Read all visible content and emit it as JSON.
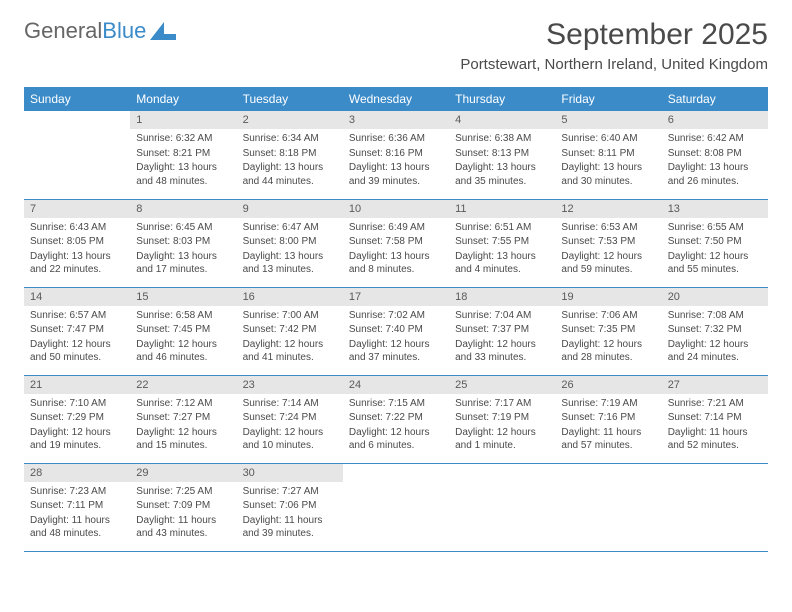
{
  "brand": {
    "name1": "General",
    "name2": "Blue"
  },
  "title": "September 2025",
  "location": "Portstewart, Northern Ireland, United Kingdom",
  "colors": {
    "header_bg": "#3b8bc9",
    "header_text": "#ffffff",
    "daynum_bg": "#e6e6e6",
    "text": "#4a4a4a",
    "border": "#3b8bc9",
    "page_bg": "#ffffff"
  },
  "fonts": {
    "title_size": 30,
    "location_size": 15,
    "weekday_size": 12,
    "body_size": 10
  },
  "weekdays": [
    "Sunday",
    "Monday",
    "Tuesday",
    "Wednesday",
    "Thursday",
    "Friday",
    "Saturday"
  ],
  "first_weekday_index": 1,
  "days": [
    {
      "n": "1",
      "sunrise": "Sunrise: 6:32 AM",
      "sunset": "Sunset: 8:21 PM",
      "daylight": "Daylight: 13 hours and 48 minutes."
    },
    {
      "n": "2",
      "sunrise": "Sunrise: 6:34 AM",
      "sunset": "Sunset: 8:18 PM",
      "daylight": "Daylight: 13 hours and 44 minutes."
    },
    {
      "n": "3",
      "sunrise": "Sunrise: 6:36 AM",
      "sunset": "Sunset: 8:16 PM",
      "daylight": "Daylight: 13 hours and 39 minutes."
    },
    {
      "n": "4",
      "sunrise": "Sunrise: 6:38 AM",
      "sunset": "Sunset: 8:13 PM",
      "daylight": "Daylight: 13 hours and 35 minutes."
    },
    {
      "n": "5",
      "sunrise": "Sunrise: 6:40 AM",
      "sunset": "Sunset: 8:11 PM",
      "daylight": "Daylight: 13 hours and 30 minutes."
    },
    {
      "n": "6",
      "sunrise": "Sunrise: 6:42 AM",
      "sunset": "Sunset: 8:08 PM",
      "daylight": "Daylight: 13 hours and 26 minutes."
    },
    {
      "n": "7",
      "sunrise": "Sunrise: 6:43 AM",
      "sunset": "Sunset: 8:05 PM",
      "daylight": "Daylight: 13 hours and 22 minutes."
    },
    {
      "n": "8",
      "sunrise": "Sunrise: 6:45 AM",
      "sunset": "Sunset: 8:03 PM",
      "daylight": "Daylight: 13 hours and 17 minutes."
    },
    {
      "n": "9",
      "sunrise": "Sunrise: 6:47 AM",
      "sunset": "Sunset: 8:00 PM",
      "daylight": "Daylight: 13 hours and 13 minutes."
    },
    {
      "n": "10",
      "sunrise": "Sunrise: 6:49 AM",
      "sunset": "Sunset: 7:58 PM",
      "daylight": "Daylight: 13 hours and 8 minutes."
    },
    {
      "n": "11",
      "sunrise": "Sunrise: 6:51 AM",
      "sunset": "Sunset: 7:55 PM",
      "daylight": "Daylight: 13 hours and 4 minutes."
    },
    {
      "n": "12",
      "sunrise": "Sunrise: 6:53 AM",
      "sunset": "Sunset: 7:53 PM",
      "daylight": "Daylight: 12 hours and 59 minutes."
    },
    {
      "n": "13",
      "sunrise": "Sunrise: 6:55 AM",
      "sunset": "Sunset: 7:50 PM",
      "daylight": "Daylight: 12 hours and 55 minutes."
    },
    {
      "n": "14",
      "sunrise": "Sunrise: 6:57 AM",
      "sunset": "Sunset: 7:47 PM",
      "daylight": "Daylight: 12 hours and 50 minutes."
    },
    {
      "n": "15",
      "sunrise": "Sunrise: 6:58 AM",
      "sunset": "Sunset: 7:45 PM",
      "daylight": "Daylight: 12 hours and 46 minutes."
    },
    {
      "n": "16",
      "sunrise": "Sunrise: 7:00 AM",
      "sunset": "Sunset: 7:42 PM",
      "daylight": "Daylight: 12 hours and 41 minutes."
    },
    {
      "n": "17",
      "sunrise": "Sunrise: 7:02 AM",
      "sunset": "Sunset: 7:40 PM",
      "daylight": "Daylight: 12 hours and 37 minutes."
    },
    {
      "n": "18",
      "sunrise": "Sunrise: 7:04 AM",
      "sunset": "Sunset: 7:37 PM",
      "daylight": "Daylight: 12 hours and 33 minutes."
    },
    {
      "n": "19",
      "sunrise": "Sunrise: 7:06 AM",
      "sunset": "Sunset: 7:35 PM",
      "daylight": "Daylight: 12 hours and 28 minutes."
    },
    {
      "n": "20",
      "sunrise": "Sunrise: 7:08 AM",
      "sunset": "Sunset: 7:32 PM",
      "daylight": "Daylight: 12 hours and 24 minutes."
    },
    {
      "n": "21",
      "sunrise": "Sunrise: 7:10 AM",
      "sunset": "Sunset: 7:29 PM",
      "daylight": "Daylight: 12 hours and 19 minutes."
    },
    {
      "n": "22",
      "sunrise": "Sunrise: 7:12 AM",
      "sunset": "Sunset: 7:27 PM",
      "daylight": "Daylight: 12 hours and 15 minutes."
    },
    {
      "n": "23",
      "sunrise": "Sunrise: 7:14 AM",
      "sunset": "Sunset: 7:24 PM",
      "daylight": "Daylight: 12 hours and 10 minutes."
    },
    {
      "n": "24",
      "sunrise": "Sunrise: 7:15 AM",
      "sunset": "Sunset: 7:22 PM",
      "daylight": "Daylight: 12 hours and 6 minutes."
    },
    {
      "n": "25",
      "sunrise": "Sunrise: 7:17 AM",
      "sunset": "Sunset: 7:19 PM",
      "daylight": "Daylight: 12 hours and 1 minute."
    },
    {
      "n": "26",
      "sunrise": "Sunrise: 7:19 AM",
      "sunset": "Sunset: 7:16 PM",
      "daylight": "Daylight: 11 hours and 57 minutes."
    },
    {
      "n": "27",
      "sunrise": "Sunrise: 7:21 AM",
      "sunset": "Sunset: 7:14 PM",
      "daylight": "Daylight: 11 hours and 52 minutes."
    },
    {
      "n": "28",
      "sunrise": "Sunrise: 7:23 AM",
      "sunset": "Sunset: 7:11 PM",
      "daylight": "Daylight: 11 hours and 48 minutes."
    },
    {
      "n": "29",
      "sunrise": "Sunrise: 7:25 AM",
      "sunset": "Sunset: 7:09 PM",
      "daylight": "Daylight: 11 hours and 43 minutes."
    },
    {
      "n": "30",
      "sunrise": "Sunrise: 7:27 AM",
      "sunset": "Sunset: 7:06 PM",
      "daylight": "Daylight: 11 hours and 39 minutes."
    }
  ]
}
